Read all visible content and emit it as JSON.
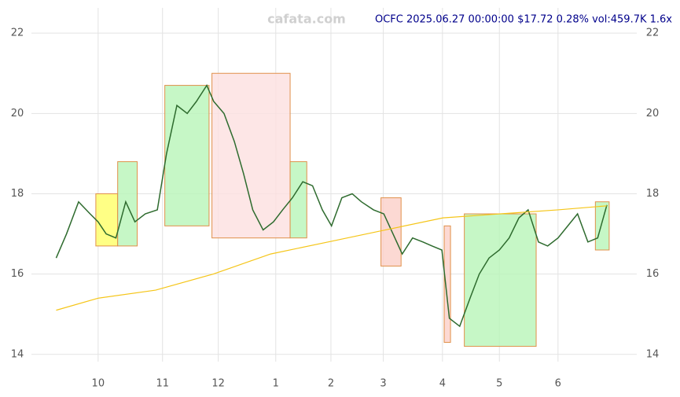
{
  "chart_data": {
    "type": "line",
    "watermark": "cafata.com",
    "title": "OCFC 2025.06.27 00:00:00 $17.72 0.28% vol:459.7K 1.6x",
    "xlim": [
      -1.16,
      9.37
    ],
    "ylim": [
      13.82,
      22.63
    ],
    "yticks": [
      14,
      16,
      18,
      20,
      22
    ],
    "xticks": [
      {
        "value": 0,
        "label": "10"
      },
      {
        "value": 1.12,
        "label": "11"
      },
      {
        "value": 2.09,
        "label": "12"
      },
      {
        "value": 3.09,
        "label": "1"
      },
      {
        "value": 4.05,
        "label": "2"
      },
      {
        "value": 4.96,
        "label": "3"
      },
      {
        "value": 5.99,
        "label": "4"
      },
      {
        "value": 6.98,
        "label": "5"
      },
      {
        "value": 8.0,
        "label": "6"
      }
    ],
    "grid": true,
    "series": [
      {
        "color": "#2e6b2e",
        "x": [
          -0.73,
          -0.55,
          -0.34,
          -0.14,
          0,
          0.14,
          0.31,
          0.48,
          0.64,
          0.82,
          1.03,
          1.19,
          1.37,
          1.55,
          1.71,
          1.89,
          2.01,
          2.19,
          2.37,
          2.53,
          2.69,
          2.87,
          3.05,
          3.21,
          3.38,
          3.56,
          3.73,
          3.9,
          4.06,
          4.24,
          4.42,
          4.58,
          4.79,
          4.97,
          5.13,
          5.29,
          5.47,
          5.65,
          5.81,
          5.98,
          6.11,
          6.29,
          6.47,
          6.63,
          6.8,
          6.98,
          7.15,
          7.32,
          7.48,
          7.66,
          7.82,
          8.0,
          8.17,
          8.34,
          8.52,
          8.69,
          8.85
        ],
        "values": [
          16.4,
          17.0,
          17.8,
          17.5,
          17.3,
          17.0,
          16.9,
          17.8,
          17.3,
          17.5,
          17.6,
          19.0,
          20.2,
          20.0,
          20.3,
          20.7,
          20.3,
          20.0,
          19.3,
          18.5,
          17.6,
          17.1,
          17.3,
          17.6,
          17.9,
          18.3,
          18.2,
          17.6,
          17.2,
          17.9,
          18.0,
          17.8,
          17.6,
          17.5,
          17.0,
          16.5,
          16.9,
          16.8,
          16.7,
          16.6,
          14.9,
          14.7,
          15.4,
          16.0,
          16.4,
          16.6,
          16.9,
          17.4,
          17.6,
          16.8,
          16.7,
          16.9,
          17.2,
          17.5,
          16.8,
          16.9,
          17.72
        ]
      },
      {
        "color": "#f5c518",
        "x": [
          -0.73,
          0,
          1,
          2,
          3,
          4,
          5,
          6,
          7,
          8,
          8.85
        ],
        "values": [
          15.1,
          15.4,
          15.6,
          16.0,
          16.5,
          16.8,
          17.1,
          17.4,
          17.5,
          17.6,
          17.7
        ]
      }
    ],
    "zones": [
      {
        "x0": -0.04,
        "x1": 0.34,
        "y0": 16.7,
        "y1": 18.0,
        "color": "#ffff66"
      },
      {
        "x0": 0.34,
        "x1": 0.68,
        "y0": 16.7,
        "y1": 18.8,
        "color": "#b8f5b8"
      },
      {
        "x0": 1.16,
        "x1": 1.93,
        "y0": 17.2,
        "y1": 20.7,
        "color": "#b8f5b8"
      },
      {
        "x0": 1.98,
        "x1": 3.34,
        "y0": 16.9,
        "y1": 21.0,
        "color": "#fde0e0"
      },
      {
        "x0": 3.34,
        "x1": 3.63,
        "y0": 16.9,
        "y1": 18.8,
        "color": "#b8f5b8"
      },
      {
        "x0": 4.92,
        "x1": 5.27,
        "y0": 16.2,
        "y1": 17.9,
        "color": "#fbd0c8"
      },
      {
        "x0": 6.02,
        "x1": 6.13,
        "y0": 14.3,
        "y1": 17.2,
        "color": "#fbd0c8"
      },
      {
        "x0": 6.37,
        "x1": 7.62,
        "y0": 14.2,
        "y1": 17.5,
        "color": "#b8f5b8"
      },
      {
        "x0": 8.65,
        "x1": 8.89,
        "y0": 16.6,
        "y1": 17.8,
        "color": "#b8f5b8"
      }
    ]
  }
}
